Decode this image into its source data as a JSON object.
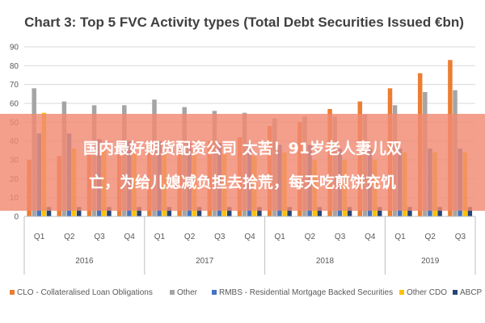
{
  "chart_data": {
    "type": "bar",
    "title": "Chart 3: Top 5 FVC Activity types (Total Debt Securities Issued €bn)",
    "xlabel": "",
    "ylabel": "",
    "ylim": [
      0,
      90
    ],
    "yticks": [
      0,
      10,
      20,
      30,
      40,
      50,
      60,
      70,
      80,
      90
    ],
    "grid": true,
    "legend_position": "bottom",
    "categories": [
      "Q1",
      "Q2",
      "Q3",
      "Q4",
      "Q1",
      "Q2",
      "Q3",
      "Q4",
      "Q1",
      "Q2",
      "Q3",
      "Q4",
      "Q1",
      "Q2",
      "Q3"
    ],
    "years": [
      {
        "label": "2016",
        "span": 4
      },
      {
        "label": "2017",
        "span": 4
      },
      {
        "label": "2018",
        "span": 4
      },
      {
        "label": "2019",
        "span": 3
      }
    ],
    "series": [
      {
        "name": "CLO - Collateralised Loan Obligations",
        "color": "#ED7D31",
        "values": [
          30,
          32,
          34,
          35,
          37,
          38,
          40,
          42,
          48,
          50,
          57,
          61,
          68,
          76,
          83
        ]
      },
      {
        "name": "Other",
        "color": "#A5A5A5",
        "values": [
          68,
          61,
          59,
          59,
          62,
          58,
          56,
          55,
          52,
          53,
          53,
          54,
          59,
          66,
          67
        ]
      },
      {
        "name": "RMBS - Residential Mortgage Backed Securities",
        "color": "#4472C4",
        "values": [
          44,
          44,
          41,
          40,
          40,
          39,
          39,
          39,
          38,
          38,
          36,
          36,
          36,
          36,
          36
        ]
      },
      {
        "name": "Other CDO",
        "color": "#FFC000",
        "values": [
          55,
          36,
          35,
          34,
          33,
          33,
          33,
          32,
          34,
          30,
          30,
          30,
          34,
          34,
          34
        ]
      },
      {
        "name": "ABCP",
        "color": "#264478",
        "values": [
          5,
          5,
          5,
          5,
          5,
          5,
          5,
          5,
          5,
          5,
          5,
          5,
          5,
          5,
          5
        ]
      }
    ]
  },
  "banner": {
    "line1": "国内最好期货配资公司 太苦！91岁老人妻儿双",
    "line2": "亡，为给儿媳减负担去拾荒，每天吃煎饼充饥"
  }
}
